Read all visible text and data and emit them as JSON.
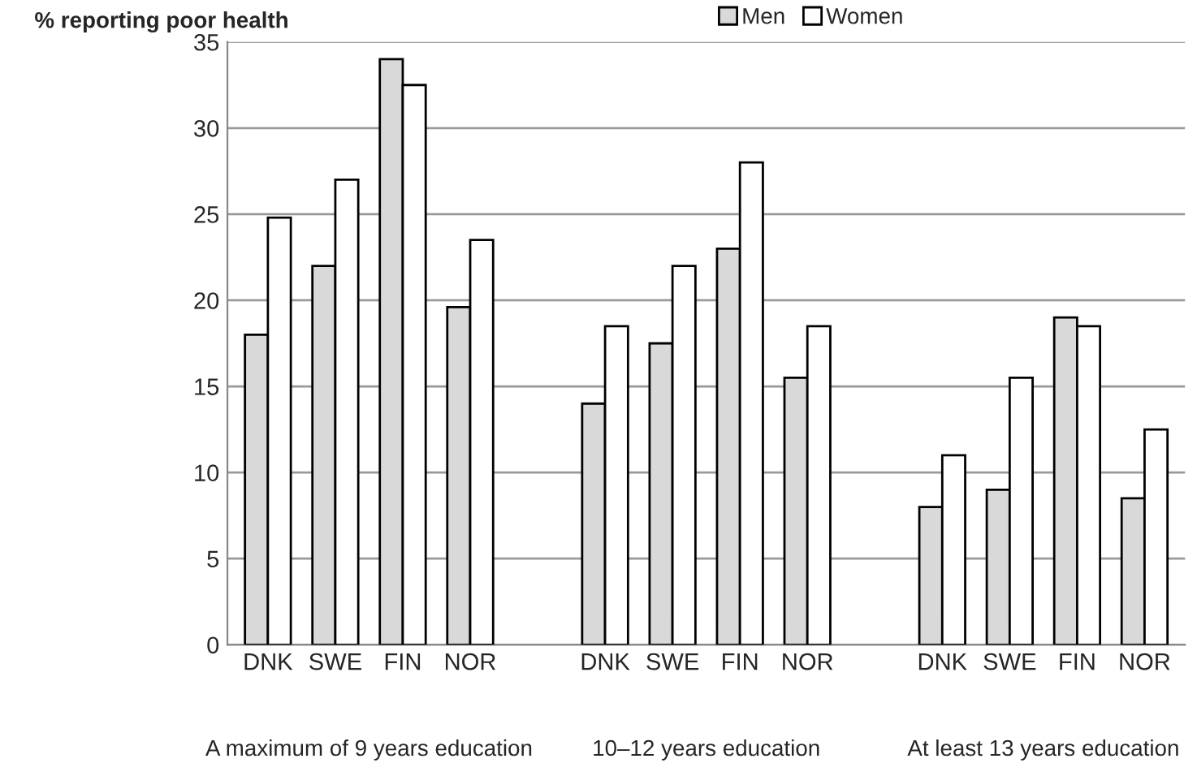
{
  "chart_data": {
    "type": "bar",
    "ylabel": "% reporting poor health",
    "categories": [
      "DNK",
      "SWE",
      "FIN",
      "NOR",
      null,
      "DNK",
      "SWE",
      "FIN",
      "NOR",
      null,
      "DNK",
      "SWE",
      "FIN",
      "NOR"
    ],
    "series": [
      {
        "name": "Men",
        "color": "#d9d9d9",
        "values": [
          18,
          22,
          34,
          19.6,
          null,
          14,
          17.5,
          23,
          15.5,
          null,
          8,
          9,
          19,
          8.5
        ]
      },
      {
        "name": "Women",
        "color": "#ffffff",
        "values": [
          24.8,
          27,
          32.5,
          23.5,
          null,
          18.5,
          22,
          28,
          18.5,
          null,
          11,
          15.5,
          18.5,
          12.5
        ]
      }
    ],
    "ylim": [
      0,
      35
    ],
    "yticks": [
      0,
      5,
      10,
      15,
      20,
      25,
      30,
      35
    ],
    "grid": "y",
    "legend": "top right",
    "annotations": [
      "A maximum of 9 years education",
      "10–12 years education",
      "At least 13 years education"
    ]
  }
}
